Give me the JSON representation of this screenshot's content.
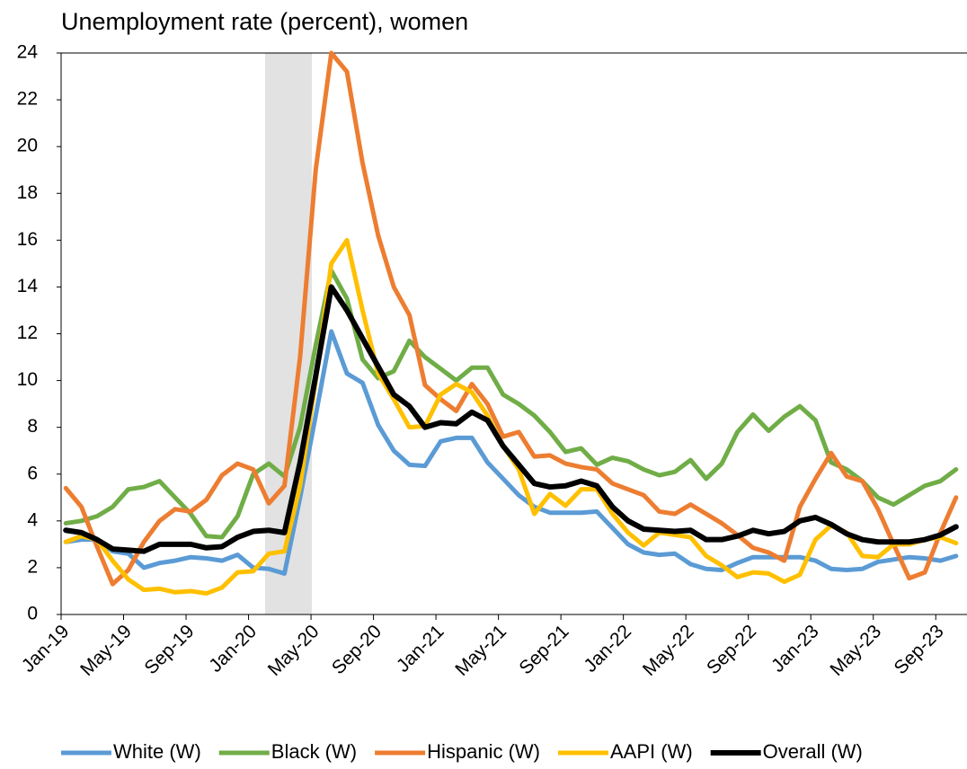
{
  "chart_data": {
    "type": "line",
    "title": "Unemployment rate (percent), women",
    "categories": [
      "Jan-19",
      null,
      null,
      null,
      "May-19",
      null,
      null,
      null,
      "Sep-19",
      null,
      null,
      null,
      "Jan-20",
      null,
      null,
      null,
      "May-20",
      null,
      null,
      null,
      "Sep-20",
      null,
      null,
      null,
      "Jan-21",
      null,
      null,
      null,
      "May-21",
      null,
      null,
      null,
      "Sep-21",
      null,
      null,
      null,
      "Jan-22",
      null,
      null,
      null,
      "May-22",
      null,
      null,
      null,
      "Sep-22",
      null,
      null,
      null,
      "Jan-23",
      null,
      null,
      null,
      "May-23",
      null,
      null,
      null,
      "Sep-23",
      null
    ],
    "ylim": [
      0,
      24
    ],
    "yticks": [
      0,
      2,
      4,
      6,
      8,
      10,
      12,
      14,
      16,
      18,
      20,
      22,
      24
    ],
    "legend": "bottom",
    "series": [
      {
        "name": "White (W)",
        "color": "#5b9bd5",
        "values": [
          3.1,
          3.2,
          3.2,
          2.7,
          2.6,
          2.0,
          2.2,
          2.3,
          2.45,
          2.4,
          2.3,
          2.55,
          2.0,
          1.95,
          1.75,
          5.0,
          8.5,
          12.1,
          10.3,
          9.9,
          8.1,
          7.0,
          6.4,
          6.35,
          7.4,
          7.55,
          7.55,
          6.5,
          5.8,
          5.1,
          4.6,
          4.35,
          4.35,
          4.35,
          4.4,
          3.7,
          3.0,
          2.65,
          2.55,
          2.6,
          2.15,
          1.95,
          1.9,
          2.2,
          2.45,
          2.45,
          2.45,
          2.45,
          2.3,
          1.95,
          1.9,
          1.95,
          2.25,
          2.35,
          2.45,
          2.4,
          2.3,
          2.5
        ]
      },
      {
        "name": "Black (W)",
        "color": "#70ad47",
        "values": [
          3.9,
          4.0,
          4.2,
          4.6,
          5.35,
          5.45,
          5.7,
          5.0,
          4.3,
          3.35,
          3.3,
          4.2,
          6.0,
          6.45,
          5.9,
          8.0,
          11.5,
          14.7,
          13.5,
          10.9,
          10.1,
          10.4,
          11.7,
          11.0,
          10.5,
          10.0,
          10.55,
          10.55,
          9.4,
          9.0,
          8.5,
          7.8,
          6.95,
          7.1,
          6.4,
          6.7,
          6.55,
          6.2,
          5.95,
          6.1,
          6.6,
          5.8,
          6.45,
          7.8,
          8.55,
          7.85,
          8.45,
          8.9,
          8.3,
          6.5,
          6.2,
          5.7,
          5.0,
          4.7,
          5.1,
          5.5,
          5.7,
          6.2
        ]
      },
      {
        "name": "Hispanic (W)",
        "color": "#ed7d31",
        "values": [
          5.4,
          4.6,
          2.9,
          1.3,
          1.9,
          3.1,
          4.0,
          4.5,
          4.4,
          4.9,
          5.95,
          6.45,
          6.2,
          4.75,
          5.5,
          11.0,
          19.0,
          24.0,
          23.2,
          19.3,
          16.2,
          14.0,
          12.8,
          9.8,
          9.2,
          8.7,
          9.85,
          9.0,
          7.6,
          7.8,
          6.75,
          6.8,
          6.45,
          6.3,
          6.2,
          5.6,
          5.35,
          5.1,
          4.4,
          4.3,
          4.7,
          4.3,
          3.9,
          3.4,
          2.85,
          2.65,
          2.3,
          4.6,
          5.8,
          6.9,
          5.9,
          5.7,
          4.5,
          3.0,
          1.55,
          1.8,
          3.5,
          5.0
        ]
      },
      {
        "name": "AAPI (W)",
        "color": "#ffc000",
        "values": [
          3.1,
          3.35,
          3.2,
          2.3,
          1.5,
          1.05,
          1.1,
          0.95,
          1.0,
          0.9,
          1.15,
          1.8,
          1.85,
          2.6,
          2.7,
          5.5,
          10.0,
          15.0,
          16.0,
          13.0,
          10.3,
          9.2,
          8.0,
          8.05,
          9.4,
          9.85,
          9.5,
          8.5,
          7.2,
          6.2,
          4.3,
          5.15,
          4.65,
          5.35,
          5.35,
          4.3,
          3.5,
          2.95,
          3.5,
          3.4,
          3.3,
          2.5,
          2.1,
          1.6,
          1.8,
          1.75,
          1.4,
          1.7,
          3.2,
          3.8,
          3.5,
          2.5,
          2.45,
          3.0,
          3.0,
          3.2,
          3.3,
          3.05
        ]
      },
      {
        "name": "Overall (W)",
        "color": "#000000",
        "values": [
          3.6,
          3.5,
          3.2,
          2.8,
          2.75,
          2.7,
          3.0,
          3.0,
          3.0,
          2.85,
          2.9,
          3.3,
          3.55,
          3.6,
          3.5,
          6.5,
          10.2,
          14.0,
          13.0,
          11.8,
          10.6,
          9.4,
          8.9,
          8.0,
          8.2,
          8.15,
          8.65,
          8.3,
          7.2,
          6.4,
          5.6,
          5.45,
          5.5,
          5.7,
          5.5,
          4.6,
          4.0,
          3.65,
          3.6,
          3.55,
          3.6,
          3.2,
          3.2,
          3.35,
          3.6,
          3.45,
          3.55,
          4.0,
          4.15,
          3.85,
          3.45,
          3.2,
          3.1,
          3.1,
          3.1,
          3.2,
          3.4,
          3.75
        ]
      }
    ]
  }
}
